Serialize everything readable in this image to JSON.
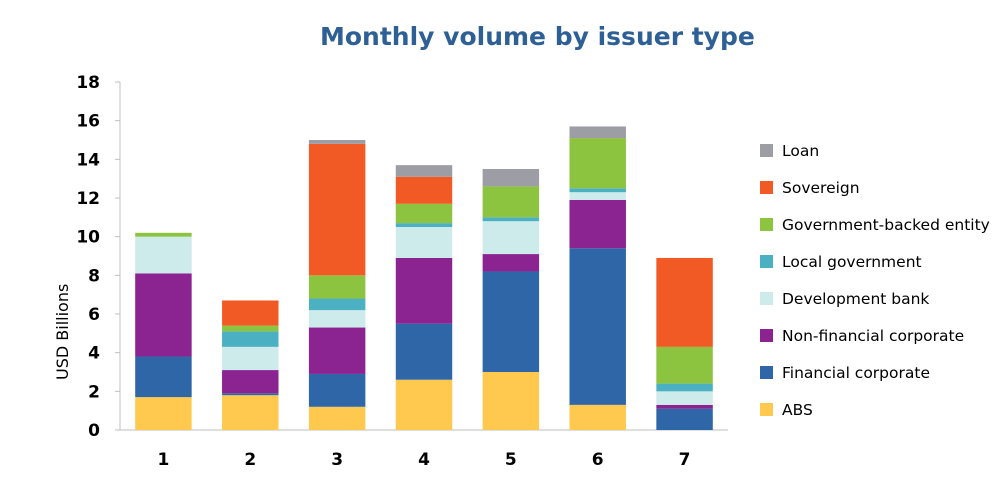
{
  "chart_data": {
    "type": "bar",
    "stacked": true,
    "title": "Monthly volume by issuer type",
    "xlabel": "",
    "ylabel": "USD Billions",
    "ylim": [
      0,
      18
    ],
    "yticks": [
      0,
      2,
      4,
      6,
      8,
      10,
      12,
      14,
      16,
      18
    ],
    "categories": [
      "1",
      "2",
      "3",
      "4",
      "5",
      "6",
      "7"
    ],
    "series": [
      {
        "name": "ABS",
        "color": "#ffc84f",
        "values": [
          1.7,
          1.8,
          1.2,
          2.6,
          3.0,
          1.3,
          0.0
        ]
      },
      {
        "name": "Financial corporate",
        "color": "#2e66a8",
        "values": [
          2.1,
          0.1,
          1.7,
          2.9,
          5.2,
          8.1,
          1.1
        ]
      },
      {
        "name": "Non-financial corporate",
        "color": "#8b2391",
        "values": [
          4.3,
          1.2,
          2.4,
          3.4,
          0.9,
          2.5,
          0.2
        ]
      },
      {
        "name": "Development bank",
        "color": "#cdebeb",
        "values": [
          1.9,
          1.2,
          0.9,
          1.6,
          1.7,
          0.4,
          0.7
        ]
      },
      {
        "name": "Local government",
        "color": "#4bb0c1",
        "values": [
          0.0,
          0.8,
          0.6,
          0.2,
          0.2,
          0.2,
          0.4
        ]
      },
      {
        "name": "Government-backed entity",
        "color": "#8dc43f",
        "values": [
          0.2,
          0.3,
          1.2,
          1.0,
          1.6,
          2.6,
          1.9
        ]
      },
      {
        "name": "Sovereign",
        "color": "#f15a24",
        "values": [
          0.0,
          1.3,
          6.8,
          1.4,
          0.0,
          0.0,
          4.6
        ]
      },
      {
        "name": "Loan",
        "color": "#9d9da5",
        "values": [
          0.0,
          0.0,
          0.2,
          0.6,
          0.9,
          0.6,
          0.0
        ]
      }
    ],
    "legend_position": "right",
    "grid": false
  }
}
